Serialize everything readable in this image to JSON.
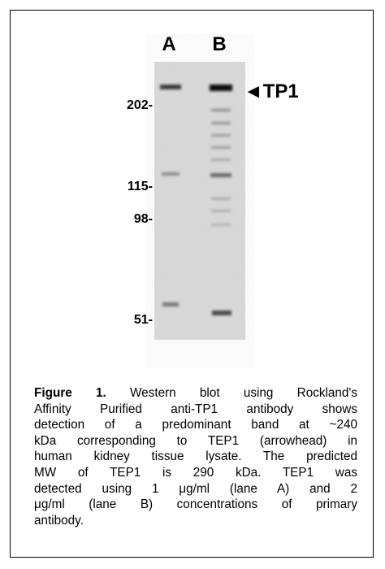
{
  "figure": {
    "lane_labels": [
      "A",
      "B"
    ],
    "markers": [
      "202-",
      "115-",
      "98-",
      "51-"
    ],
    "arrow_label": "◄TP1",
    "caption": {
      "label": "Figure 1.",
      "lines": [
        "Western blot using Rockland's",
        "Affinity Purified anti-TP1 antibody shows",
        "detection of a predominant band at ~240",
        "kDa corresponding to TEP1 (arrowhead) in",
        "human kidney tissue lysate.  The predicted",
        "MW of TEP1 is 290 kDa.   TEP1 was",
        "detected using 1 μg/ml (lane A) and 2",
        "μg/ml (lane B) concentrations of primary",
        "antibody."
      ]
    }
  }
}
